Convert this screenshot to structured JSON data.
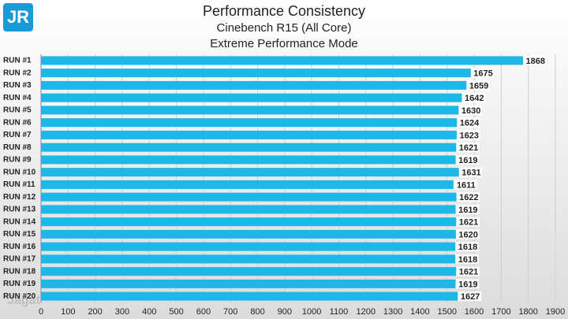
{
  "logo": "JR",
  "watermark": "Jagat",
  "chart_data": {
    "type": "bar",
    "orientation": "horizontal",
    "title": "Performance Consistency",
    "subtitle": "Cinebench R15 (All Core)",
    "subtitle2": "Extreme Performance Mode",
    "categories": [
      "RUN #1",
      "RUN #2",
      "RUN #3",
      "RUN #4",
      "RUN #5",
      "RUN #6",
      "RUN #7",
      "RUN #8",
      "RUN #9",
      "RUN #10",
      "RUN #11",
      "RUN #12",
      "RUN #13",
      "RUN #14",
      "RUN #15",
      "RUN #16",
      "RUN #17",
      "RUN #18",
      "RUN #19",
      "RUN #20"
    ],
    "values": [
      1868,
      1675,
      1659,
      1642,
      1630,
      1624,
      1623,
      1621,
      1619,
      1631,
      1611,
      1622,
      1619,
      1621,
      1620,
      1618,
      1618,
      1621,
      1619,
      1627
    ],
    "color": "#1cb8e8",
    "xlim": [
      0,
      1900
    ],
    "xticks": [
      0,
      100,
      200,
      300,
      400,
      500,
      600,
      700,
      800,
      900,
      1000,
      1100,
      1200,
      1300,
      1400,
      1500,
      1600,
      1700,
      1800,
      1900
    ],
    "grid": true
  }
}
